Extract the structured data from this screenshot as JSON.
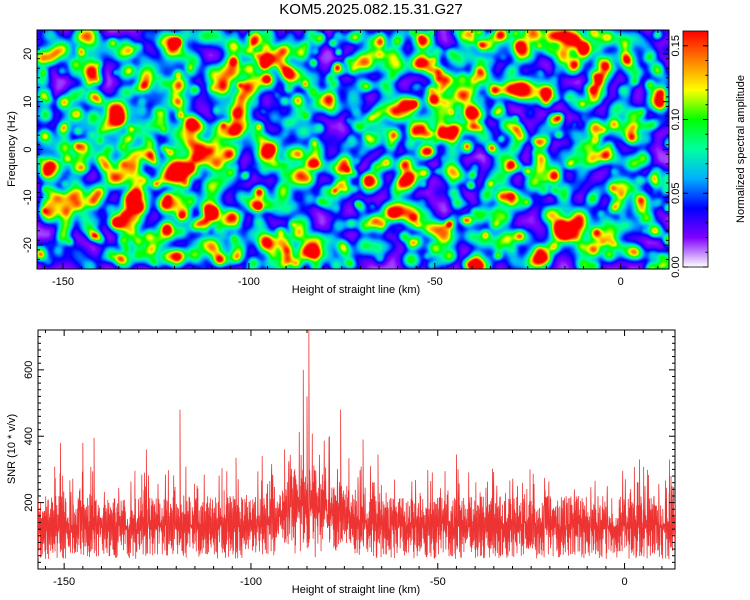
{
  "title": "KOM5.2025.082.15.31.G27",
  "chart_data": [
    {
      "type": "heatmap",
      "xlabel": "Height of straight line (km)",
      "ylabel": "Frequency (Hz)",
      "xlim": [
        -157,
        13
      ],
      "ylim": [
        -25,
        25
      ],
      "xticks": [
        -150,
        -100,
        -50,
        0
      ],
      "yticks": [
        -20,
        -10,
        0,
        10,
        20
      ],
      "colorbar": {
        "label": "Normalized spectral amplitude",
        "range": [
          0,
          0.16
        ],
        "ticks": [
          "0.00",
          "0.05",
          "0.10",
          "0.15"
        ],
        "tick_values": [
          0,
          0.05,
          0.1,
          0.15
        ],
        "colormap": "rainbow",
        "colors": [
          "#ffffff",
          "#8000ff",
          "#0000ff",
          "#00b0ff",
          "#00ffa0",
          "#00ff00",
          "#ffff00",
          "#ff8000",
          "#ff0000"
        ]
      },
      "hot_spots": [
        {
          "x": -10,
          "y": 21,
          "v": 0.15
        },
        {
          "x": -120,
          "y": 22.5,
          "v": 0.14
        },
        {
          "x": -108,
          "y": -23,
          "v": 0.13
        },
        {
          "x": -48,
          "y": 3.5,
          "v": 0.15
        },
        {
          "x": -110,
          "y": -13.5,
          "v": 0.13
        },
        {
          "x": -61,
          "y": 3.2,
          "v": 0.12
        },
        {
          "x": -87,
          "y": 10.5,
          "v": 0.11
        },
        {
          "x": -83,
          "y": -21,
          "v": 0.11
        },
        {
          "x": -34,
          "y": 12.5,
          "v": 0.12
        },
        {
          "x": -20,
          "y": 12,
          "v": 0.11
        },
        {
          "x": -68,
          "y": -6,
          "v": 0.1
        },
        {
          "x": -155,
          "y": 3,
          "v": 0.09
        },
        {
          "x": -135,
          "y": 6,
          "v": 0.09
        },
        {
          "x": -150,
          "y": 10,
          "v": 0.1
        },
        {
          "x": -127,
          "y": -18,
          "v": 0.08
        },
        {
          "x": -75,
          "y": -20,
          "v": 0.09
        },
        {
          "x": -28,
          "y": 4.5,
          "v": 0.08
        },
        {
          "x": -2,
          "y": 5.5,
          "v": 0.09
        },
        {
          "x": -45,
          "y": -9,
          "v": 0.07
        },
        {
          "x": -93,
          "y": -3,
          "v": 0.07
        },
        {
          "x": -130,
          "y": -9,
          "v": 0.06
        },
        {
          "x": -12,
          "y": -18,
          "v": 0.07
        },
        {
          "x": 8,
          "y": -25,
          "v": 0.08
        },
        {
          "x": -40,
          "y": 8,
          "v": 0.08
        },
        {
          "x": -65,
          "y": 20,
          "v": 0.08
        },
        {
          "x": -147,
          "y": 18,
          "v": 0.07
        },
        {
          "x": -100,
          "y": 17,
          "v": 0.07
        },
        {
          "x": -55,
          "y": -19,
          "v": 0.07
        }
      ]
    },
    {
      "type": "line",
      "xlabel": "Height of straight line (km)",
      "ylabel": "SNR (10 * v/v)",
      "xlim": [
        -157,
        13.5
      ],
      "ylim": [
        0,
        720
      ],
      "xticks": [
        -150,
        -100,
        -50,
        0
      ],
      "yticks": [
        200,
        400,
        600
      ],
      "series_color": "#ee3333",
      "noise_band": [
        60,
        220
      ],
      "peaks": [
        {
          "x": -84.5,
          "y": 720
        },
        {
          "x": -86,
          "y": 600
        },
        {
          "x": -85,
          "y": 520
        },
        {
          "x": -76,
          "y": 480
        },
        {
          "x": -119,
          "y": 480
        },
        {
          "x": -70,
          "y": 390
        },
        {
          "x": -142,
          "y": 395
        },
        {
          "x": -145,
          "y": 380
        },
        {
          "x": -151,
          "y": 380
        },
        {
          "x": -128,
          "y": 360
        },
        {
          "x": -45,
          "y": 345
        },
        {
          "x": -91,
          "y": 360
        },
        {
          "x": -79,
          "y": 400
        },
        {
          "x": 12,
          "y": 330
        },
        {
          "x": -97,
          "y": 340
        },
        {
          "x": -104,
          "y": 335
        },
        {
          "x": -66,
          "y": 345
        },
        {
          "x": 4,
          "y": 330
        }
      ]
    }
  ]
}
